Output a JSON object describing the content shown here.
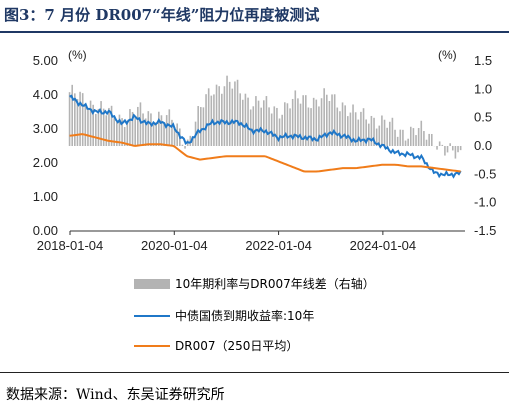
{
  "title": "图3：7 月份 DR007“年线”阻力位再度被测试",
  "source": "数据来源：Wind、东吴证券研究所",
  "chart_data": {
    "type": "line+bar",
    "left_axis": {
      "unit": "(%)",
      "ylim": [
        0,
        5
      ],
      "ticks": [
        "0.00",
        "1.00",
        "2.00",
        "3.00",
        "4.00",
        "5.00"
      ]
    },
    "right_axis": {
      "unit": "(%)",
      "ylim": [
        -1.5,
        1.5
      ],
      "ticks": [
        "-1.5",
        "-1.0",
        "-0.5",
        "0.0",
        "0.5",
        "1.0",
        "1.5"
      ]
    },
    "x_ticks": [
      "2018-01-04",
      "2020-01-04",
      "2022-01-04",
      "2024-01-04"
    ],
    "x_range": [
      "2018-01-04",
      "2025-08-01"
    ],
    "series": [
      {
        "name": "10年期利率与DR007年线差（右轴）",
        "kind": "bar",
        "axis": "right",
        "color": "#b3b3b3",
        "x": [
          "2018-01",
          "2018-04",
          "2018-07",
          "2018-10",
          "2019-01",
          "2019-04",
          "2019-07",
          "2019-10",
          "2020-01",
          "2020-04",
          "2020-07",
          "2020-10",
          "2021-01",
          "2021-04",
          "2021-07",
          "2021-10",
          "2022-01",
          "2022-04",
          "2022-07",
          "2022-10",
          "2023-01",
          "2023-04",
          "2023-07",
          "2023-10",
          "2024-01",
          "2024-04",
          "2024-07",
          "2024-10",
          "2025-01",
          "2025-04",
          "2025-07"
        ],
        "values": [
          0.95,
          0.8,
          0.75,
          0.55,
          0.5,
          0.6,
          0.55,
          0.55,
          0.4,
          0.05,
          0.6,
          1.05,
          1.1,
          1.0,
          0.8,
          0.7,
          0.65,
          0.75,
          0.85,
          0.8,
          0.85,
          0.75,
          0.5,
          0.55,
          0.4,
          0.3,
          0.25,
          0.25,
          0.15,
          -0.15,
          -0.15
        ]
      },
      {
        "name": "中债国债到期收益率:10年",
        "kind": "line",
        "axis": "left",
        "color": "#1f77c8",
        "x": [
          "2018-01",
          "2018-04",
          "2018-07",
          "2018-10",
          "2019-01",
          "2019-04",
          "2019-07",
          "2019-10",
          "2020-01",
          "2020-04",
          "2020-07",
          "2020-10",
          "2021-01",
          "2021-04",
          "2021-07",
          "2021-10",
          "2022-01",
          "2022-04",
          "2022-07",
          "2022-10",
          "2023-01",
          "2023-04",
          "2023-07",
          "2023-10",
          "2024-01",
          "2024-04",
          "2024-07",
          "2024-10",
          "2025-01",
          "2025-04",
          "2025-07"
        ],
        "values": [
          3.95,
          3.7,
          3.5,
          3.5,
          3.15,
          3.35,
          3.15,
          3.2,
          3.05,
          2.55,
          2.95,
          3.2,
          3.2,
          3.2,
          2.95,
          2.95,
          2.75,
          2.8,
          2.75,
          2.7,
          2.9,
          2.8,
          2.65,
          2.7,
          2.5,
          2.3,
          2.25,
          2.15,
          1.7,
          1.65,
          1.7
        ]
      },
      {
        "name": "DR007（250日平均）",
        "kind": "line",
        "axis": "left",
        "color": "#f07c1a",
        "x": [
          "2018-01",
          "2018-04",
          "2018-07",
          "2018-10",
          "2019-01",
          "2019-04",
          "2019-07",
          "2019-10",
          "2020-01",
          "2020-04",
          "2020-07",
          "2020-10",
          "2021-01",
          "2021-04",
          "2021-07",
          "2021-10",
          "2022-01",
          "2022-04",
          "2022-07",
          "2022-10",
          "2023-01",
          "2023-04",
          "2023-07",
          "2023-10",
          "2024-01",
          "2024-04",
          "2024-07",
          "2024-10",
          "2025-01",
          "2025-04",
          "2025-07"
        ],
        "values": [
          2.8,
          2.85,
          2.75,
          2.65,
          2.6,
          2.5,
          2.55,
          2.55,
          2.5,
          2.2,
          2.1,
          2.15,
          2.2,
          2.2,
          2.2,
          2.2,
          2.05,
          1.9,
          1.75,
          1.75,
          1.8,
          1.85,
          1.85,
          1.9,
          1.95,
          1.95,
          1.9,
          1.9,
          1.85,
          1.8,
          1.75
        ]
      }
    ],
    "legend_placement": "bottom"
  }
}
